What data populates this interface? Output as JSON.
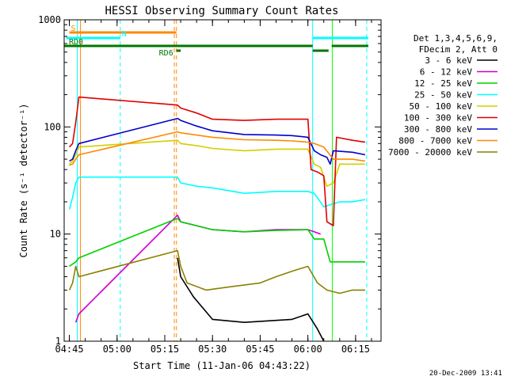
{
  "chart_data": {
    "type": "line",
    "title": "HESSI Observing Summary Count Rates",
    "xlabel": "Start Time (11-Jan-06 04:43:22)",
    "ylabel": "Count Rate (s⁻¹ detector⁻¹)",
    "yscale": "log",
    "ylim": [
      1,
      1000
    ],
    "xlim": [
      "04:43:22",
      "06:23:00"
    ],
    "x_ticks": [
      "04:45",
      "05:00",
      "05:15",
      "05:30",
      "05:45",
      "06:00",
      "06:15"
    ],
    "y_ticks": [
      "1",
      "10",
      "100",
      "1000"
    ],
    "legend_header": [
      "Det 1,3,4,5,6,9,",
      "FDecim 2, Att 0"
    ],
    "legend_placement": "right",
    "grid": false,
    "footer_date": "20-Dec-2009 13:41",
    "series": [
      {
        "name": "3 - 6 keV",
        "color": "#000000",
        "points": [
          [
            "05:19",
            6
          ],
          [
            "05:20",
            4
          ],
          [
            "05:24",
            2.6
          ],
          [
            "05:30",
            1.6
          ],
          [
            "05:40",
            1.5
          ],
          [
            "05:55",
            1.6
          ],
          [
            "06:00",
            1.8
          ],
          [
            "06:03",
            1.3
          ],
          [
            "06:05",
            1
          ]
        ]
      },
      {
        "name": "6 - 12 keV",
        "color": "#d000d0",
        "points": [
          [
            "04:47",
            1.5
          ],
          [
            "04:48",
            1.8
          ],
          [
            "05:19",
            15
          ],
          [
            "05:20",
            13
          ],
          [
            "05:30",
            11
          ],
          [
            "05:40",
            10.5
          ],
          [
            "05:50",
            11
          ],
          [
            "06:00",
            11
          ],
          [
            "06:02",
            10.5
          ],
          [
            "06:04",
            10
          ]
        ]
      },
      {
        "name": "12 - 25 keV",
        "color": "#00d000",
        "points": [
          [
            "04:45",
            5
          ],
          [
            "04:47",
            5.5
          ],
          [
            "04:48",
            6
          ],
          [
            "05:19",
            14
          ],
          [
            "05:20",
            13
          ],
          [
            "05:30",
            11
          ],
          [
            "05:40",
            10.5
          ],
          [
            "05:50",
            10.8
          ],
          [
            "06:00",
            11
          ],
          [
            "06:02",
            9
          ],
          [
            "06:05",
            9
          ],
          [
            "06:07",
            5.5
          ],
          [
            "06:12",
            5.5
          ],
          [
            "06:18",
            5.5
          ]
        ]
      },
      {
        "name": "25 - 50 keV",
        "color": "#00ffff",
        "points": [
          [
            "04:45",
            17
          ],
          [
            "04:46",
            22
          ],
          [
            "04:47",
            30
          ],
          [
            "04:48",
            34
          ],
          [
            "05:19",
            34
          ],
          [
            "05:20",
            30
          ],
          [
            "05:25",
            28
          ],
          [
            "05:30",
            27
          ],
          [
            "05:40",
            24
          ],
          [
            "05:50",
            25
          ],
          [
            "06:00",
            25
          ],
          [
            "06:02",
            24
          ],
          [
            "06:05",
            18
          ],
          [
            "06:10",
            20
          ],
          [
            "06:14",
            20
          ],
          [
            "06:18",
            21
          ]
        ]
      },
      {
        "name": "50 - 100 keV",
        "color": "#d0d000",
        "points": [
          [
            "04:45",
            45
          ],
          [
            "04:46",
            48
          ],
          [
            "04:47",
            55
          ],
          [
            "04:48",
            65
          ],
          [
            "05:19",
            75
          ],
          [
            "05:20",
            70
          ],
          [
            "05:25",
            67
          ],
          [
            "05:30",
            63
          ],
          [
            "05:40",
            60
          ],
          [
            "05:50",
            62
          ],
          [
            "05:55",
            62
          ],
          [
            "06:00",
            62
          ],
          [
            "06:02",
            45
          ],
          [
            "06:04",
            42
          ],
          [
            "06:06",
            28
          ],
          [
            "06:08",
            30
          ],
          [
            "06:10",
            45
          ],
          [
            "06:14",
            45
          ],
          [
            "06:18",
            45
          ]
        ]
      },
      {
        "name": "100 - 300 keV",
        "color": "#e00000",
        "points": [
          [
            "04:45",
            65
          ],
          [
            "04:46",
            70
          ],
          [
            "04:47",
            110
          ],
          [
            "04:48",
            190
          ],
          [
            "05:19",
            160
          ],
          [
            "05:20",
            150
          ],
          [
            "05:25",
            135
          ],
          [
            "05:30",
            118
          ],
          [
            "05:40",
            115
          ],
          [
            "05:50",
            118
          ],
          [
            "05:55",
            118
          ],
          [
            "06:00",
            118
          ],
          [
            "06:01",
            40
          ],
          [
            "06:03",
            38
          ],
          [
            "06:05",
            35
          ],
          [
            "06:06",
            13
          ],
          [
            "06:08",
            12
          ],
          [
            "06:09",
            80
          ],
          [
            "06:14",
            75
          ],
          [
            "06:18",
            72
          ]
        ]
      },
      {
        "name": "300 - 800 keV",
        "color": "#0000cc",
        "points": [
          [
            "04:45",
            48
          ],
          [
            "04:46",
            50
          ],
          [
            "04:47",
            60
          ],
          [
            "04:48",
            70
          ],
          [
            "05:19",
            120
          ],
          [
            "05:20",
            115
          ],
          [
            "05:25",
            102
          ],
          [
            "05:30",
            92
          ],
          [
            "05:40",
            85
          ],
          [
            "05:50",
            84
          ],
          [
            "05:55",
            83
          ],
          [
            "06:00",
            80
          ],
          [
            "06:02",
            60
          ],
          [
            "06:04",
            55
          ],
          [
            "06:06",
            52
          ],
          [
            "06:07",
            45
          ],
          [
            "06:08",
            60
          ],
          [
            "06:14",
            58
          ],
          [
            "06:18",
            55
          ]
        ]
      },
      {
        "name": "800 - 7000 keV",
        "color": "#ff8800",
        "points": [
          [
            "04:45",
            44
          ],
          [
            "04:46",
            45
          ],
          [
            "04:47",
            50
          ],
          [
            "04:48",
            55
          ],
          [
            "05:19",
            90
          ],
          [
            "05:20",
            88
          ],
          [
            "05:25",
            84
          ],
          [
            "05:30",
            80
          ],
          [
            "05:40",
            76
          ],
          [
            "05:50",
            75
          ],
          [
            "05:55",
            74
          ],
          [
            "06:00",
            72
          ],
          [
            "06:02",
            70
          ],
          [
            "06:05",
            65
          ],
          [
            "06:08",
            50
          ],
          [
            "06:14",
            50
          ],
          [
            "06:18",
            48
          ]
        ]
      },
      {
        "name": "7000 - 20000 keV",
        "color": "#8b8000",
        "points": [
          [
            "04:45",
            3
          ],
          [
            "04:46",
            3.5
          ],
          [
            "04:47",
            5
          ],
          [
            "04:48",
            4
          ],
          [
            "05:19",
            7
          ],
          [
            "05:20",
            5
          ],
          [
            "05:22",
            3.5
          ],
          [
            "05:28",
            3
          ],
          [
            "05:35",
            3.2
          ],
          [
            "05:45",
            3.5
          ],
          [
            "05:50",
            4
          ],
          [
            "05:55",
            4.5
          ],
          [
            "06:00",
            5
          ],
          [
            "06:03",
            3.5
          ],
          [
            "06:06",
            3
          ],
          [
            "06:10",
            2.8
          ],
          [
            "06:14",
            3
          ],
          [
            "06:18",
            3
          ]
        ]
      }
    ],
    "annotations": {
      "vertical_lines": [
        {
          "time": "04:47:30",
          "color": "#00ffff",
          "style": "solid"
        },
        {
          "time": "04:48:30",
          "color": "#ff8800",
          "style": "solid"
        },
        {
          "time": "05:01:00",
          "color": "#00ffff",
          "style": "dashed"
        },
        {
          "time": "05:18:00",
          "color": "#ff8800",
          "style": "dashed"
        },
        {
          "time": "05:18:40",
          "color": "#ff8800",
          "style": "dashed"
        },
        {
          "time": "06:01:30",
          "color": "#00ffff",
          "style": "solid"
        },
        {
          "time": "06:07:40",
          "color": "#00ff00",
          "style": "solid"
        },
        {
          "time": "06:18:30",
          "color": "#00ffff",
          "style": "dashed"
        }
      ],
      "flag_bars": [
        {
          "label": "S",
          "color": "#ff8800",
          "start": "04:45:00",
          "end": "05:18:40",
          "level": 0
        },
        {
          "label": "N",
          "color": "#00ffff",
          "start": "04:44:00",
          "end": "05:01:00",
          "level": 1
        },
        {
          "label": "RD0",
          "color": "#007700",
          "start": "04:43:22",
          "end": "06:01:30",
          "level": 2
        },
        {
          "label": "RD6",
          "color": "#007700",
          "start": "05:18:40",
          "end": "05:20:00",
          "level": 3
        },
        {
          "label": "",
          "color": "#00ffff",
          "start": "06:01:30",
          "end": "06:19:00",
          "level": 1
        },
        {
          "label": "",
          "color": "#007700",
          "start": "06:07:30",
          "end": "06:19:00",
          "level": 2
        },
        {
          "label": "",
          "color": "#007700",
          "start": "06:01:30",
          "end": "06:06:30",
          "level": 3
        }
      ]
    }
  }
}
